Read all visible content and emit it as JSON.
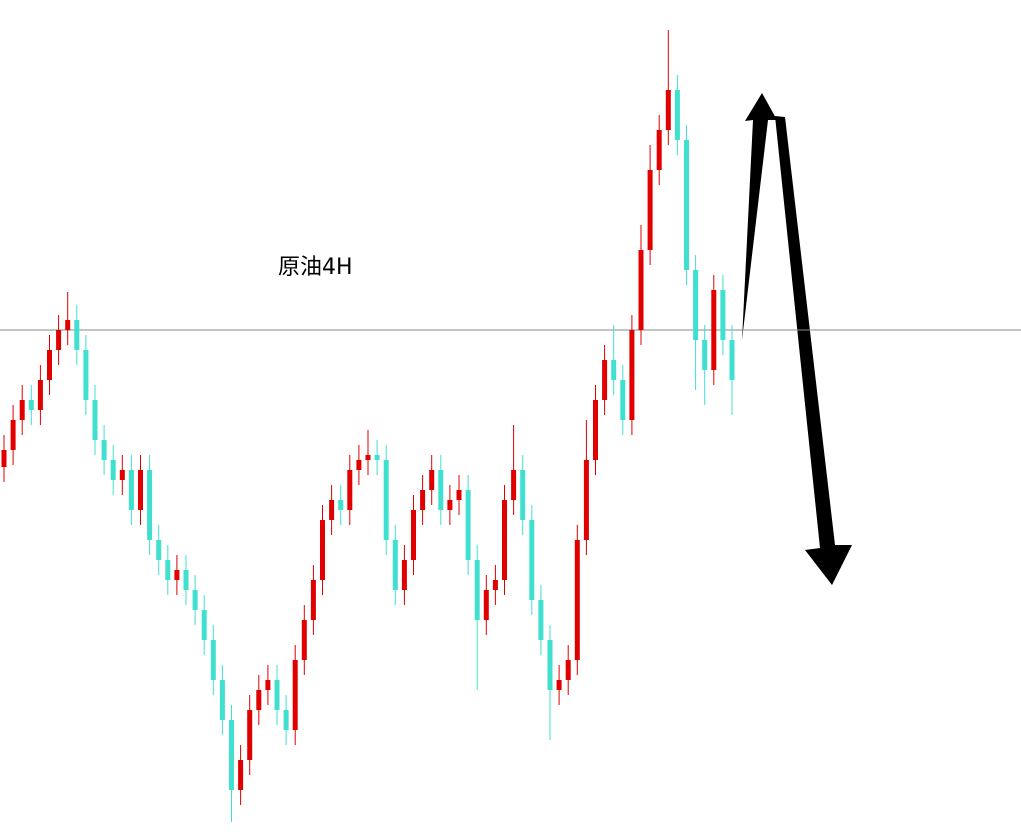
{
  "chart_data": {
    "type": "candlestick",
    "title": "原油4H",
    "ylim": [
      0,
      837
    ],
    "up_color": "#e00000",
    "down_color": "#40e0d0",
    "hline": {
      "value": 507,
      "color": "#8a8a8a"
    },
    "open": [
      370,
      387,
      417,
      437,
      427,
      457,
      487,
      507,
      517,
      487,
      437,
      397,
      377,
      357,
      367,
      327,
      367,
      297,
      277,
      257,
      267,
      247,
      227,
      197,
      157,
      117,
      47,
      77,
      127,
      147,
      157,
      127,
      107,
      177,
      217,
      257,
      317,
      337,
      327,
      367,
      377,
      382,
      377,
      297,
      247,
      277,
      327,
      347,
      367,
      327,
      337,
      347,
      277,
      217,
      247,
      257,
      337,
      367,
      317,
      237,
      197,
      147,
      157,
      177,
      297,
      377,
      437,
      477,
      457,
      417,
      507,
      587,
      667,
      707,
      747,
      697,
      567,
      497,
      467,
      547,
      497
    ],
    "high": [
      402,
      432,
      452,
      452,
      472,
      502,
      522,
      545,
      532,
      502,
      452,
      412,
      392,
      382,
      382,
      382,
      382,
      312,
      292,
      282,
      282,
      262,
      242,
      212,
      172,
      132,
      92,
      142,
      162,
      172,
      172,
      142,
      192,
      232,
      272,
      332,
      352,
      352,
      382,
      392,
      407,
      397,
      392,
      312,
      292,
      342,
      362,
      382,
      382,
      352,
      362,
      362,
      292,
      262,
      272,
      352,
      412,
      382,
      332,
      252,
      212,
      172,
      192,
      312,
      417,
      452,
      492,
      512,
      472,
      522,
      612,
      692,
      722,
      807,
      762,
      712,
      582,
      512,
      562,
      562,
      512
    ],
    "low": [
      355,
      372,
      402,
      412,
      412,
      442,
      472,
      492,
      472,
      422,
      382,
      362,
      342,
      342,
      312,
      312,
      282,
      262,
      242,
      242,
      232,
      212,
      182,
      142,
      102,
      15,
      32,
      62,
      112,
      132,
      112,
      92,
      92,
      162,
      202,
      242,
      302,
      312,
      312,
      352,
      362,
      362,
      282,
      232,
      232,
      262,
      312,
      332,
      312,
      312,
      322,
      262,
      147,
      202,
      232,
      242,
      322,
      302,
      222,
      182,
      97,
      132,
      142,
      162,
      282,
      362,
      422,
      442,
      402,
      402,
      492,
      572,
      652,
      692,
      682,
      552,
      447,
      432,
      452,
      482,
      422
    ],
    "close": [
      387,
      417,
      437,
      427,
      457,
      487,
      507,
      517,
      487,
      437,
      397,
      377,
      357,
      367,
      327,
      367,
      297,
      277,
      257,
      267,
      247,
      227,
      197,
      157,
      117,
      47,
      77,
      127,
      147,
      157,
      127,
      107,
      177,
      217,
      257,
      317,
      337,
      327,
      367,
      377,
      382,
      377,
      297,
      247,
      277,
      327,
      347,
      367,
      327,
      337,
      347,
      277,
      217,
      247,
      257,
      337,
      367,
      317,
      237,
      197,
      147,
      157,
      177,
      297,
      377,
      437,
      477,
      457,
      417,
      507,
      587,
      667,
      707,
      747,
      697,
      567,
      497,
      467,
      547,
      497,
      457
    ]
  }
}
